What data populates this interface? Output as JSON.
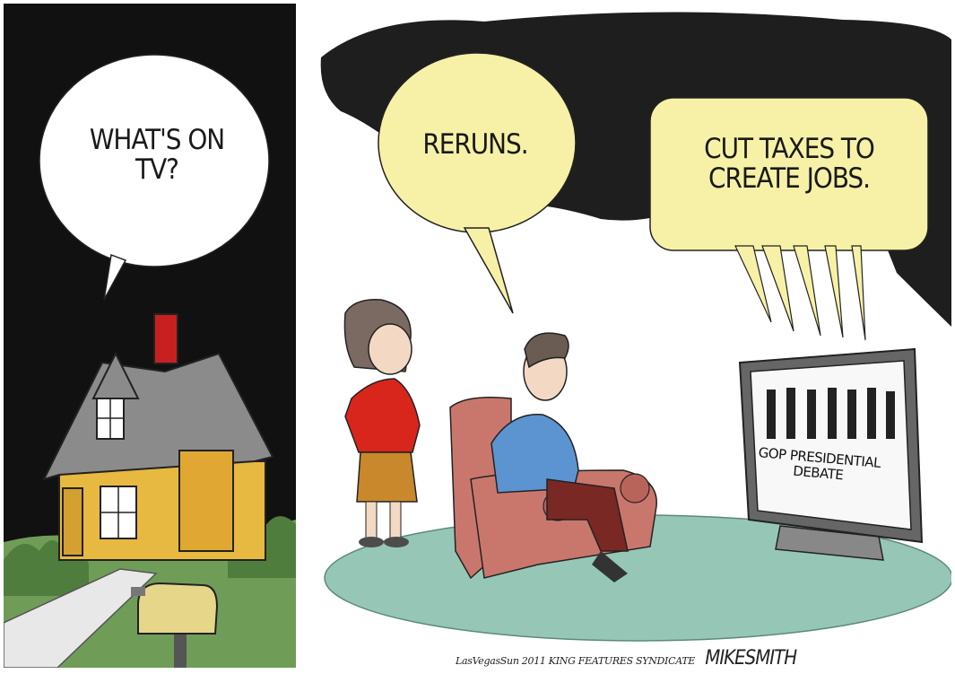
{
  "left_panel": {
    "bubble_text": "WHAT'S ON\nTV?"
  },
  "right_panel": {
    "woman_bubble_text": "RERUNS.",
    "tv_bubble_text": "CUT TAXES TO\nCREATE JOBS.",
    "tv_screen_text": "GOP PRESIDENTIAL\nDEBATE"
  },
  "credits": {
    "publisher_line": "LasVegasSun 2011 KING FEATURES SYNDICATE",
    "signature": "MIKESMITH"
  },
  "colors": {
    "night": "#111111",
    "bubble_yellow": "#f6f1a6",
    "house_yellow": "#e8b940",
    "roof_gray": "#8b8b8b",
    "chimney_red": "#c82020",
    "rug_teal": "#96c6b6",
    "armchair_pink": "#c9776d",
    "woman_shirt": "#d8261c",
    "woman_skirt": "#c8882b",
    "man_shirt": "#5b94d1",
    "grass_green": "#6f9d58"
  }
}
